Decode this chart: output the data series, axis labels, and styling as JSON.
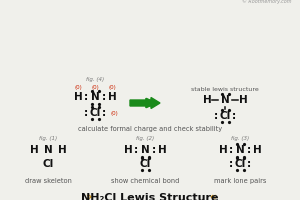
{
  "bg_color": "#f0f0eb",
  "title_color": "#111111",
  "arrow_color": "#cc8800",
  "label_color": "#555555",
  "atom_color": "#111111",
  "red_color": "#cc2200",
  "green_color": "#1a8a1a",
  "footer_color": "#999999",
  "label1": "draw skeleton",
  "label2": "show chemical bond",
  "label3": "mark lone pairs",
  "label4": "calculate formal charge and check stability",
  "fig1_label": "fig. (1)",
  "fig2_label": "fig. (2)",
  "fig3_label": "fig. (3)",
  "fig4_label": "fig. (4)",
  "stable_label": "stable lewis structure",
  "footer": "© Rootmemory.com"
}
